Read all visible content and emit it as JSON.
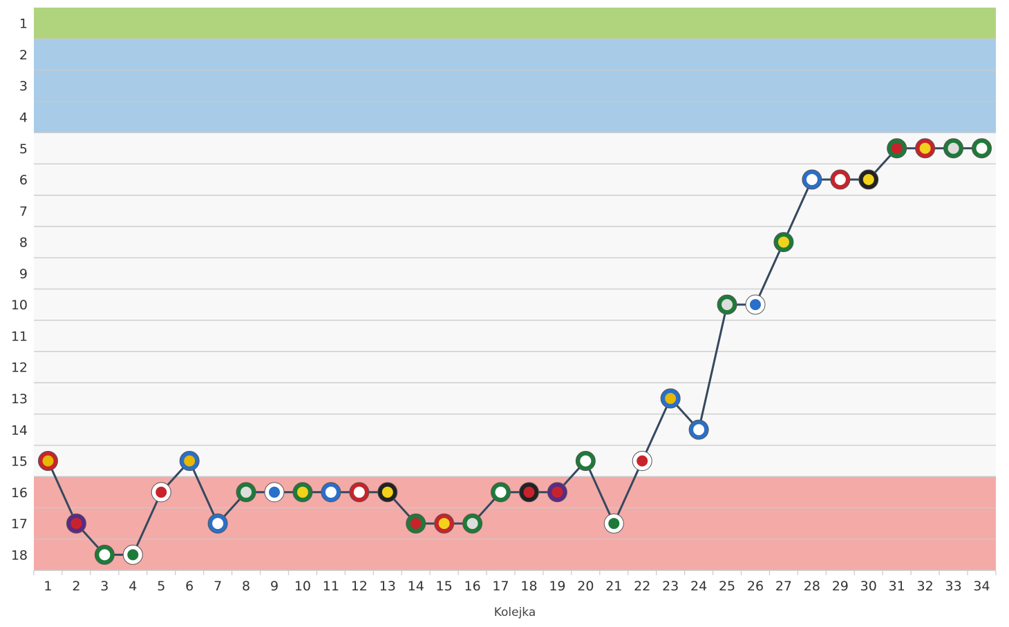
{
  "chart_data": {
    "type": "line",
    "xlabel": "Kolejka",
    "ylabel": "",
    "x": [
      1,
      2,
      3,
      4,
      5,
      6,
      7,
      8,
      9,
      10,
      11,
      12,
      13,
      14,
      15,
      16,
      17,
      18,
      19,
      20,
      21,
      22,
      23,
      24,
      25,
      26,
      27,
      28,
      29,
      30,
      31,
      32,
      33,
      34
    ],
    "series": [
      {
        "values": [
          15,
          17,
          18,
          18,
          16,
          15,
          17,
          16,
          16,
          16,
          16,
          16,
          16,
          17,
          17,
          17,
          16,
          16,
          16,
          15,
          17,
          15,
          13,
          14,
          10,
          10,
          8,
          6,
          6,
          6,
          5,
          5,
          5,
          5
        ],
        "color": "#34495e",
        "markers": [
          "red-gold-shield-crest",
          "purple-red-shield-crest",
          "green-white-round-crest",
          "white-green-shield-crest",
          "white-red-pennant-crest",
          "blue-gold-cog-crest",
          "blue-white-crest",
          "green-shield-crest",
          "white-blue-red-crest",
          "green-yellow-shield-crest",
          "blue-white-striped-crest",
          "red-white-round-crest",
          "black-yellow-pennant-crest",
          "green-red-oval-crest",
          "red-yellow-shield-crest",
          "green-round-crest",
          "green-white-pennant-crest",
          "black-red-shield-crest",
          "purple-red-shield-crest",
          "green-white-round-crest",
          "white-green-shield-crest",
          "white-red-pennant-crest",
          "blue-gold-cog-crest",
          "blue-white-crest",
          "green-shield-crest",
          "white-blue-red-crest",
          "green-yellow-shield-crest",
          "blue-white-striped-crest",
          "red-white-round-crest",
          "black-yellow-pennant-crest",
          "green-red-oval-crest",
          "red-yellow-shield-crest",
          "green-round-crest",
          "green-white-pennant-crest"
        ]
      }
    ],
    "categories_y": [
      1,
      2,
      3,
      4,
      5,
      6,
      7,
      8,
      9,
      10,
      11,
      12,
      13,
      14,
      15,
      16,
      17,
      18
    ],
    "ylim": [
      1,
      18
    ],
    "y_reversed": true,
    "xlim": [
      1,
      34
    ],
    "grid": true,
    "bands": [
      {
        "from": 1,
        "to": 1,
        "color": "#b0d47e"
      },
      {
        "from": 2,
        "to": 4,
        "color": "#a8cce8"
      },
      {
        "from": 5,
        "to": 15,
        "color": "#f8f8f8"
      },
      {
        "from": 16,
        "to": 18,
        "color": "#f4aaa7"
      }
    ]
  }
}
